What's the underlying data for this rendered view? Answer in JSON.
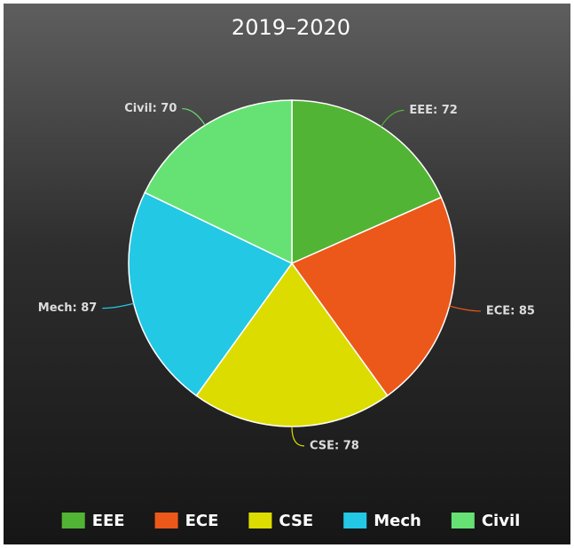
{
  "chart_data": {
    "type": "pie",
    "title": "2019–2020",
    "categories": [
      "EEE",
      "ECE",
      "CSE",
      "Mech",
      "Civil"
    ],
    "values": [
      72,
      85,
      78,
      87,
      70
    ],
    "value_labels": [
      "EEE: 72",
      "ECE: 85",
      "CSE: 78",
      "Mech: 87",
      "Civil: 70"
    ],
    "colors": [
      "#52b434",
      "#ec5819",
      "#dcdc00",
      "#23c8e4",
      "#66e274"
    ],
    "legend": "bottom"
  }
}
